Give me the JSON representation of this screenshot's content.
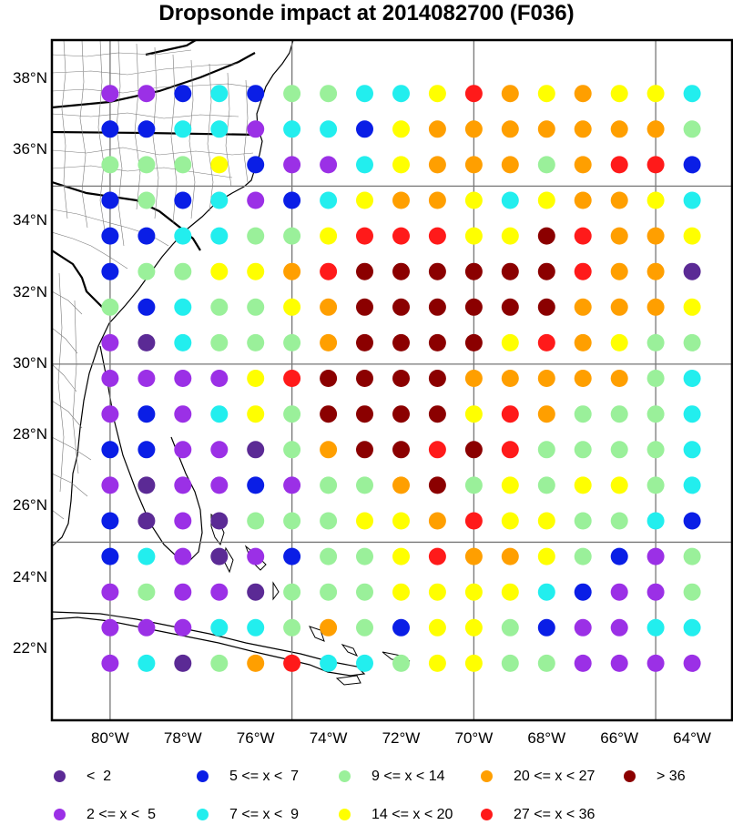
{
  "title": "Dropsonde impact at 2014082700 (F036)",
  "map": {
    "lon_range": [
      -81.6,
      -62.9
    ],
    "lat_range": [
      20.0,
      39.1
    ],
    "lat_ticks": [
      {
        "value": 22,
        "label": "22°N"
      },
      {
        "value": 24,
        "label": "24°N"
      },
      {
        "value": 26,
        "label": "26°N"
      },
      {
        "value": 28,
        "label": "28°N"
      },
      {
        "value": 30,
        "label": "30°N"
      },
      {
        "value": 32,
        "label": "32°N"
      },
      {
        "value": 34,
        "label": "34°N"
      },
      {
        "value": 36,
        "label": "36°N"
      },
      {
        "value": 38,
        "label": "38°N"
      }
    ],
    "lon_ticks": [
      {
        "value": -80,
        "label": "80°W"
      },
      {
        "value": -78,
        "label": "78°W"
      },
      {
        "value": -76,
        "label": "76°W"
      },
      {
        "value": -74,
        "label": "74°W"
      },
      {
        "value": -72,
        "label": "72°W"
      },
      {
        "value": -70,
        "label": "70°W"
      },
      {
        "value": -68,
        "label": "68°W"
      },
      {
        "value": -66,
        "label": "66°W"
      },
      {
        "value": -64,
        "label": "64°W"
      }
    ],
    "grid_lines_lon": [
      -80,
      -75,
      -70,
      -65
    ],
    "grid_lines_lat": [
      25,
      30,
      35
    ]
  },
  "chart_data": {
    "type": "scatter",
    "categories": [
      "< 2",
      "2 <= x <  5",
      "5 <= x <  7",
      "7 <= x <  9",
      "9 <= x < 14",
      "14 <= x < 20",
      "20 <= x < 27",
      "27 <= x < 36",
      "> 36"
    ],
    "colors": [
      "#5b2a95",
      "#9b30e6",
      "#0a1ee6",
      "#22eeee",
      "#9af09a",
      "#ffff00",
      "#ff9f00",
      "#ff1a1a",
      "#8b0000"
    ],
    "grid_lon": [
      -80,
      -79,
      -78,
      -77,
      -76,
      -75,
      -74,
      -73,
      -72,
      -71,
      -70,
      -69,
      -68,
      -67,
      -66,
      -65,
      -64
    ],
    "grid_lat": [
      37.6,
      36.6,
      35.6,
      34.6,
      33.6,
      32.6,
      31.6,
      30.6,
      29.6,
      28.6,
      27.6,
      26.6,
      25.6,
      24.6,
      23.6,
      22.6,
      21.6
    ],
    "rows": [
      [
        1,
        1,
        2,
        3,
        2,
        4,
        4,
        3,
        3,
        5,
        7,
        6,
        5,
        6,
        5,
        5,
        3
      ],
      [
        2,
        2,
        3,
        3,
        1,
        3,
        3,
        2,
        5,
        6,
        6,
        6,
        6,
        6,
        6,
        6,
        4
      ],
      [
        4,
        4,
        4,
        5,
        2,
        1,
        1,
        3,
        5,
        6,
        6,
        6,
        4,
        6,
        7,
        7,
        2
      ],
      [
        2,
        4,
        2,
        3,
        1,
        2,
        3,
        5,
        6,
        6,
        5,
        3,
        5,
        6,
        6,
        5,
        3
      ],
      [
        2,
        2,
        3,
        3,
        4,
        4,
        5,
        7,
        7,
        7,
        5,
        5,
        8,
        7,
        6,
        6,
        5
      ],
      [
        2,
        4,
        4,
        5,
        5,
        6,
        7,
        8,
        8,
        8,
        8,
        8,
        8,
        7,
        6,
        6,
        0
      ],
      [
        4,
        2,
        3,
        4,
        4,
        5,
        6,
        8,
        8,
        8,
        8,
        8,
        8,
        6,
        6,
        6,
        5
      ],
      [
        1,
        0,
        3,
        4,
        4,
        4,
        6,
        8,
        8,
        8,
        8,
        5,
        7,
        6,
        5,
        4,
        4
      ],
      [
        1,
        1,
        1,
        1,
        5,
        7,
        8,
        8,
        8,
        8,
        6,
        6,
        6,
        6,
        6,
        4,
        3
      ],
      [
        1,
        2,
        1,
        3,
        5,
        4,
        8,
        8,
        8,
        8,
        5,
        7,
        6,
        4,
        4,
        4,
        3
      ],
      [
        2,
        2,
        1,
        1,
        0,
        4,
        6,
        8,
        8,
        7,
        8,
        7,
        4,
        4,
        4,
        4,
        3
      ],
      [
        1,
        0,
        1,
        1,
        2,
        1,
        4,
        4,
        6,
        8,
        4,
        5,
        4,
        5,
        5,
        4,
        3
      ],
      [
        2,
        0,
        1,
        0,
        4,
        4,
        4,
        5,
        5,
        6,
        7,
        5,
        5,
        4,
        4,
        3,
        2
      ],
      [
        2,
        3,
        1,
        0,
        1,
        2,
        4,
        4,
        5,
        7,
        6,
        6,
        5,
        4,
        2,
        1,
        4
      ],
      [
        1,
        4,
        1,
        1,
        0,
        4,
        4,
        4,
        5,
        5,
        5,
        5,
        3,
        2,
        1,
        1,
        4
      ],
      [
        1,
        1,
        1,
        3,
        3,
        4,
        6,
        4,
        2,
        5,
        5,
        4,
        2,
        1,
        1,
        3,
        3
      ],
      [
        1,
        3,
        0,
        4,
        6,
        7,
        3,
        3,
        4,
        5,
        5,
        4,
        4,
        1,
        1,
        1,
        1
      ]
    ]
  },
  "legend": {
    "row1": [
      {
        "label": "<  2",
        "class": 0
      },
      {
        "label": "5 <= x <  7",
        "class": 2
      },
      {
        "label": "9 <= x < 14",
        "class": 4
      },
      {
        "label": "20 <= x < 27",
        "class": 6
      },
      {
        "label": "> 36",
        "class": 8
      }
    ],
    "row2": [
      {
        "label": "2 <= x <  5",
        "class": 1
      },
      {
        "label": "7 <= x <  9",
        "class": 3
      },
      {
        "label": "14 <= x < 20",
        "class": 5
      },
      {
        "label": "27 <= x < 36",
        "class": 7
      }
    ]
  }
}
